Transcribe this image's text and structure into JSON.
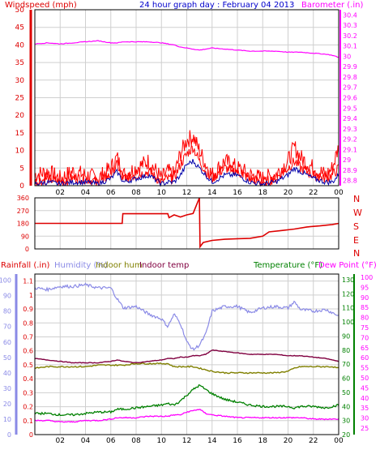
{
  "header": {
    "title": "24 hour graph day : February 04 2013",
    "left_label": "Windspeed (mph)",
    "right_label": "Barometer (.in)"
  },
  "panel2": {
    "dir_labels": [
      "N",
      "W",
      "S",
      "E",
      "N"
    ]
  },
  "panel3": {
    "labels": {
      "rainfall": "Rainfall (.in)",
      "humidity": "Humidity (%)",
      "indoor_hum": "Indoor hum",
      "indoor_temp": "Indoor temp",
      "temperature": "Temperature (°F)",
      "dewpoint": "Dew Point (°F)"
    }
  },
  "colors": {
    "wind": "#ff0000",
    "gust": "#ff0000",
    "wind_avg": "#0000aa",
    "barometer": "#ff00ff",
    "direction": "#dd0000",
    "rainfall": "#ff0000",
    "humidity": "#8a8ae6",
    "indoor_hum": "#808000",
    "indoor_temp": "#800040",
    "temperature": "#008000",
    "dewpoint": "#ff00ff",
    "title": "#0000cc"
  },
  "chart_data": [
    {
      "type": "line",
      "x_ticks": [
        "02",
        "04",
        "06",
        "08",
        "10",
        "12",
        "14",
        "16",
        "18",
        "20",
        "22",
        "00"
      ],
      "y_left_ticks": [
        "0",
        "5",
        "10",
        "15",
        "20",
        "25",
        "30",
        "35",
        "40",
        "45",
        "50"
      ],
      "y_right_ticks": [
        "28.8",
        "28.9",
        "29",
        "29.1",
        "29.2",
        "29.3",
        "29.4",
        "29.5",
        "29.6",
        "29.7",
        "29.8",
        "29.9",
        "30",
        "30.1",
        "30.2",
        "30.3",
        "30.4"
      ],
      "ylim_left": [
        0,
        50
      ],
      "ylim_right": [
        28.75,
        30.45
      ],
      "x_hours": [
        0,
        1,
        2,
        3,
        4,
        5,
        6,
        6.5,
        7,
        8,
        9,
        10,
        10.5,
        11,
        11.5,
        12,
        12.5,
        13,
        13.5,
        14,
        15,
        16,
        17,
        18,
        19,
        20,
        20.5,
        21,
        22,
        23,
        23.5,
        24
      ],
      "series": [
        {
          "name": "Windspeed (mph)",
          "axis": "left",
          "values": [
            1,
            2,
            1,
            2,
            2,
            1,
            3,
            6,
            2,
            3,
            4,
            1,
            2,
            2,
            6,
            9,
            11,
            7,
            4,
            2,
            5,
            4,
            2,
            1,
            2,
            5,
            7,
            5,
            3,
            2,
            3,
            5
          ]
        },
        {
          "name": "Wind gust",
          "axis": "left",
          "values": [
            3,
            4,
            2,
            4,
            3,
            2,
            5,
            8,
            3,
            5,
            7,
            2,
            4,
            3,
            9,
            13,
            14,
            10,
            6,
            3,
            7,
            5,
            3,
            2,
            3,
            7,
            11,
            8,
            5,
            3,
            5,
            11
          ]
        },
        {
          "name": "Wind average",
          "axis": "left",
          "values": [
            0.5,
            1,
            0.5,
            1,
            1,
            0.5,
            2,
            4,
            1,
            2,
            3,
            0.5,
            1,
            1,
            3,
            6,
            7,
            5,
            3,
            1,
            3,
            3,
            1,
            0.5,
            1,
            3,
            5,
            4,
            2,
            1,
            1,
            3
          ]
        },
        {
          "name": "Barometer (.in)",
          "axis": "right",
          "values": [
            30.12,
            30.13,
            30.12,
            30.13,
            30.14,
            30.15,
            30.13,
            30.13,
            30.14,
            30.14,
            30.14,
            30.13,
            30.12,
            30.11,
            30.09,
            30.08,
            30.07,
            30.06,
            30.07,
            30.08,
            30.07,
            30.06,
            30.05,
            30.05,
            30.05,
            30.04,
            30.04,
            30.04,
            30.03,
            30.02,
            30.01,
            29.99
          ]
        }
      ]
    },
    {
      "type": "line",
      "x_ticks": [
        "02",
        "04",
        "06",
        "08",
        "10",
        "12",
        "14",
        "16",
        "18",
        "20",
        "22",
        "00"
      ],
      "y_ticks": [
        "0",
        "90",
        "180",
        "270",
        "360"
      ],
      "ylim": [
        0,
        360
      ],
      "series": [
        {
          "name": "Wind direction",
          "x_hours": [
            0,
            6.9,
            6.95,
            10.5,
            10.6,
            11,
            11.5,
            12,
            12.5,
            13.0,
            13.05,
            13.3,
            14,
            15,
            16,
            17,
            18,
            18.5,
            19.5,
            20.5,
            21.5,
            22.5,
            23.5,
            24
          ],
          "values": [
            180,
            180,
            248,
            248,
            220,
            240,
            225,
            240,
            250,
            360,
            15,
            45,
            60,
            68,
            72,
            75,
            90,
            120,
            130,
            140,
            155,
            162,
            172,
            180
          ]
        }
      ]
    },
    {
      "type": "line",
      "x_ticks": [
        "02",
        "04",
        "06",
        "08",
        "10",
        "12",
        "14",
        "16",
        "18",
        "20",
        "22",
        "00"
      ],
      "y_ticks_rain": [
        "0",
        "0.1",
        "0.2",
        "0.3",
        "0.4",
        "0.5",
        "0.6",
        "0.7",
        "0.8",
        "0.9",
        "1",
        "1.1"
      ],
      "y_ticks_humidity": [
        "0",
        "10",
        "20",
        "30",
        "40",
        "50",
        "60",
        "70",
        "80",
        "90",
        "100"
      ],
      "y_ticks_temp_right": [
        "20",
        "30",
        "40",
        "50",
        "60",
        "70",
        "80",
        "90",
        "100",
        "110",
        "120",
        "130"
      ],
      "y_ticks_dew_right": [
        "25",
        "30",
        "35",
        "40",
        "45",
        "50",
        "55",
        "60",
        "65",
        "70",
        "75",
        "80",
        "85",
        "90",
        "95",
        "100"
      ],
      "ylim_rain": [
        0,
        1.15
      ],
      "ylim_humidity": [
        0,
        104
      ],
      "ylim_temp": [
        20,
        134
      ],
      "x_hours": [
        0,
        1,
        2,
        3,
        4,
        5,
        6,
        6.5,
        7,
        8,
        9,
        10,
        10.5,
        11,
        11.5,
        12,
        12.5,
        13,
        13.5,
        14,
        15,
        16,
        17,
        18,
        19,
        20,
        20.5,
        21,
        22,
        23,
        23.5,
        24
      ],
      "series": [
        {
          "name": "Rainfall (.in)",
          "axis": "rain",
          "values": [
            0,
            0,
            0,
            0,
            0,
            0,
            0,
            0,
            0,
            0,
            0,
            0,
            0,
            0,
            0,
            0,
            0,
            0,
            0,
            0,
            0,
            0,
            0,
            0,
            0,
            0,
            0,
            0,
            0,
            0,
            0,
            0
          ]
        },
        {
          "name": "Humidity (%)",
          "axis": "humidity",
          "values": [
            95,
            94,
            96,
            96,
            97,
            95,
            95,
            88,
            82,
            83,
            78,
            75,
            70,
            78,
            72,
            60,
            55,
            58,
            65,
            80,
            83,
            83,
            79,
            82,
            83,
            82,
            86,
            81,
            80,
            81,
            79,
            77
          ]
        },
        {
          "name": "Indoor hum",
          "axis": "humidity",
          "values": [
            43,
            44,
            44,
            44,
            44,
            45,
            45,
            45,
            45,
            46,
            46,
            46,
            46,
            44,
            44,
            44,
            44,
            43,
            42,
            41,
            40,
            40,
            40,
            40,
            40,
            41,
            43,
            44,
            44,
            44,
            44,
            43
          ]
        },
        {
          "name": "Indoor temp",
          "axis": "temp",
          "values": [
            74,
            73,
            72,
            71,
            71,
            71,
            72,
            73,
            72,
            71,
            72,
            73,
            74,
            74,
            75,
            75,
            76,
            76,
            77,
            80,
            79,
            78,
            77,
            77,
            77,
            76,
            76,
            76,
            75,
            74,
            73,
            72
          ]
        },
        {
          "name": "Temperature (°F)",
          "axis": "temp",
          "values": [
            35,
            35,
            34,
            34,
            35,
            36,
            36,
            38,
            38,
            39,
            40,
            41,
            42,
            41,
            44,
            48,
            52,
            55,
            52,
            49,
            45,
            43,
            41,
            40,
            40,
            40,
            39,
            40,
            40,
            39,
            40,
            41
          ]
        },
        {
          "name": "Dew Point (°F)",
          "axis": "temp",
          "values": [
            30,
            30,
            29,
            29,
            30,
            30,
            31,
            32,
            32,
            32,
            33,
            33,
            33,
            34,
            34,
            36,
            37,
            38,
            35,
            34,
            33,
            32,
            32,
            32,
            32,
            32,
            32,
            32,
            31,
            31,
            31,
            31
          ]
        }
      ]
    }
  ]
}
